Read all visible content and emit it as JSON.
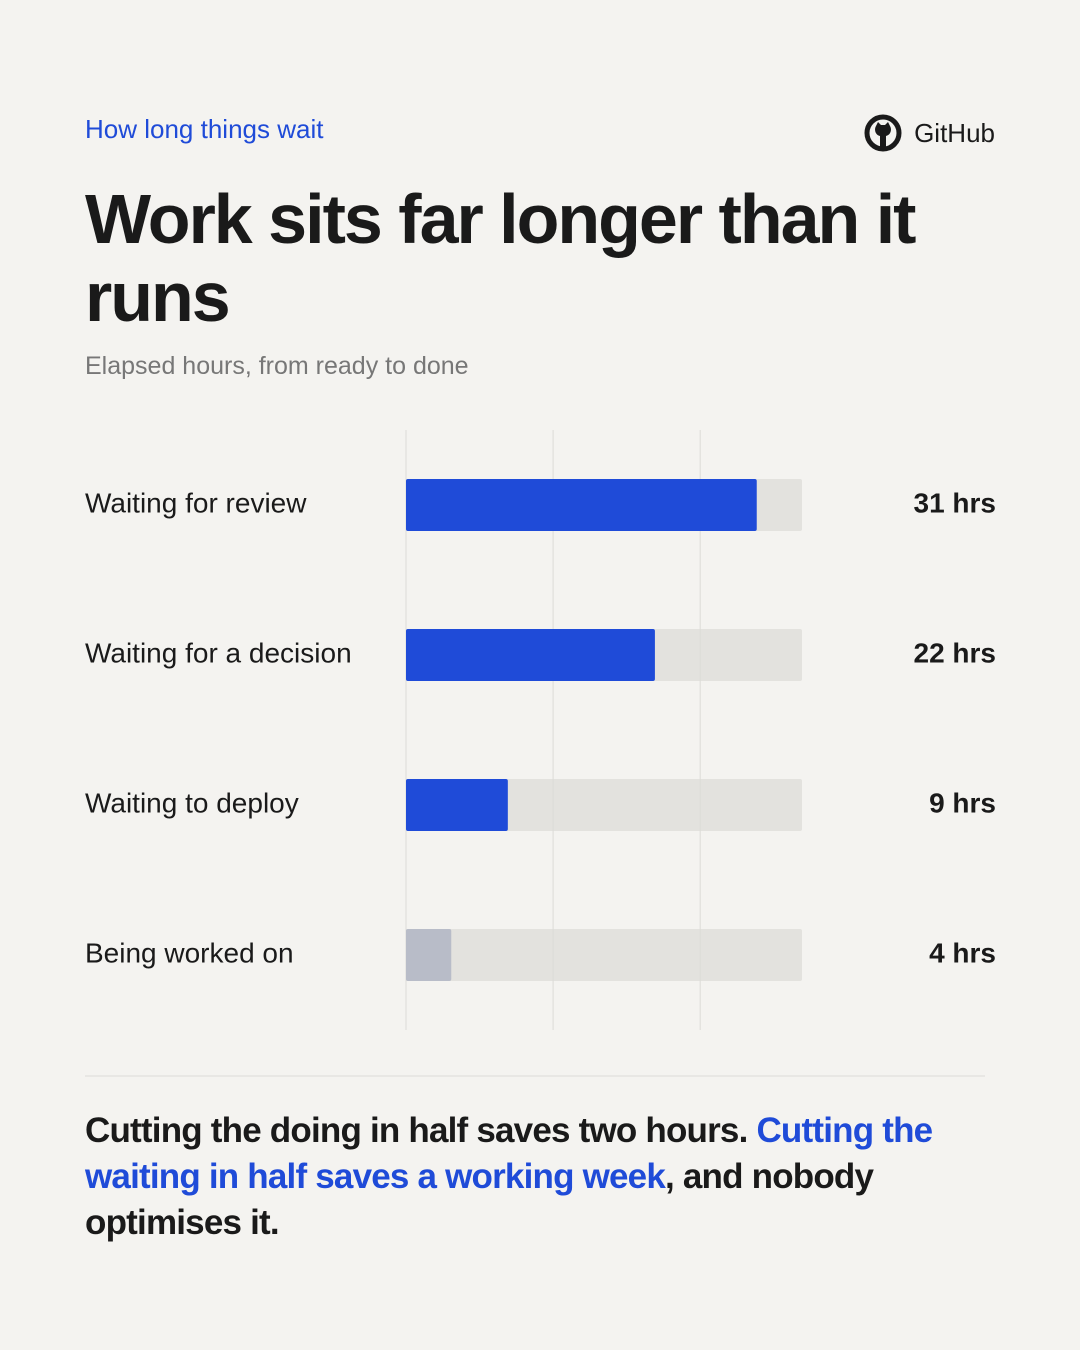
{
  "chart_data": {
    "type": "bar",
    "orientation": "horizontal",
    "kicker": "How long things wait",
    "source": "GitHub",
    "title": "Work sits far longer than it runs",
    "subtitle": "Elapsed hours, from ready to done",
    "categories": [
      "Waiting for review",
      "Waiting for a decision",
      "Waiting to deploy",
      "Being worked on"
    ],
    "values": [
      31,
      22,
      9,
      4
    ],
    "value_labels": [
      "31 hrs",
      "22 hrs",
      "9 hrs",
      "4 hrs"
    ],
    "colors": [
      "#1f4bd8",
      "#1f4bd8",
      "#1f4bd8",
      "#b8bcc8"
    ],
    "track_color": "#e3e2de",
    "xlim": [
      0,
      35
    ],
    "xticks": [
      0,
      13,
      26
    ],
    "grid": true,
    "note": [
      {
        "text": "Cutting the doing in half saves two hours. ",
        "highlight": false
      },
      {
        "text": "Cutting the waiting in half saves a working week",
        "highlight": true
      },
      {
        "text": ", and nobody optimises it.",
        "highlight": false
      }
    ]
  }
}
